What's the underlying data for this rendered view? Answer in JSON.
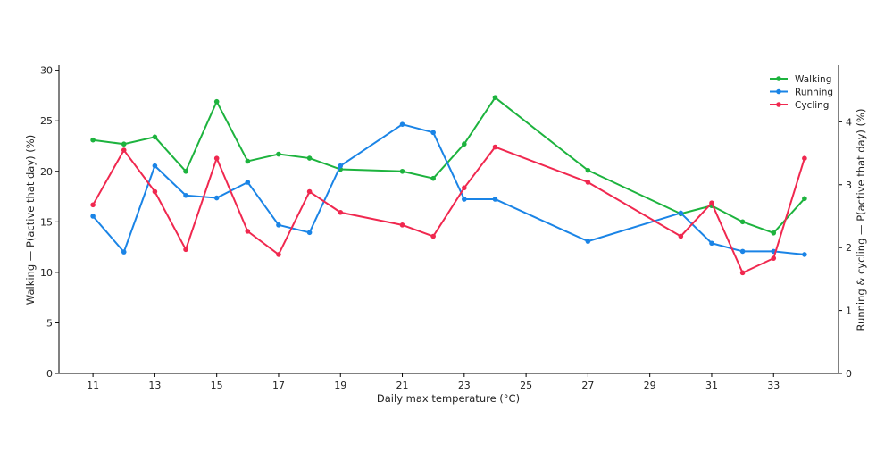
{
  "chart_data": {
    "type": "line",
    "title": "",
    "xlabel": "Daily max temperature (°C)",
    "ylabel_left": "Walking — P(active that day) (%)",
    "ylabel_right": "Running & cycling — P(active that day) (%)",
    "x_ticks": [
      11,
      13,
      15,
      17,
      19,
      21,
      23,
      25,
      27,
      29,
      31,
      33
    ],
    "xlim": [
      9.9,
      35.1
    ],
    "y_left": {
      "lim": [
        0,
        30.5
      ],
      "ticks": [
        0,
        5,
        10,
        15,
        20,
        25,
        30
      ]
    },
    "y_right": {
      "lim": [
        0,
        4.9
      ],
      "ticks": [
        0,
        1,
        2,
        3,
        4
      ]
    },
    "grid": false,
    "legend_position": "top-right",
    "series": [
      {
        "name": "Walking",
        "axis": "left",
        "color": "#1db33e",
        "x": [
          11,
          12,
          13,
          14,
          15,
          16,
          17,
          18,
          19,
          21,
          22,
          23,
          24,
          27,
          30,
          31,
          32,
          33,
          34
        ],
        "values": [
          23.1,
          22.7,
          23.4,
          20.0,
          26.9,
          21.0,
          21.7,
          21.3,
          20.2,
          20.0,
          19.3,
          22.7,
          27.3,
          20.1,
          15.8,
          16.6,
          15.0,
          13.9,
          17.3
        ]
      },
      {
        "name": "Running",
        "axis": "right",
        "color": "#1a84e6",
        "x": [
          11,
          12,
          13,
          14,
          15,
          16,
          17,
          18,
          19,
          21,
          22,
          23,
          24,
          27,
          30,
          31,
          32,
          33,
          34
        ],
        "values": [
          2.5,
          1.93,
          3.3,
          2.83,
          2.79,
          3.04,
          2.36,
          2.24,
          3.3,
          3.96,
          3.83,
          2.77,
          2.77,
          2.1,
          2.55,
          2.07,
          1.94,
          1.94,
          1.89
        ]
      },
      {
        "name": "Cycling",
        "axis": "right",
        "color": "#f0284f",
        "x": [
          11,
          12,
          13,
          14,
          15,
          16,
          17,
          18,
          19,
          21,
          22,
          23,
          24,
          27,
          30,
          31,
          32,
          33,
          34
        ],
        "values": [
          2.68,
          3.55,
          2.89,
          1.97,
          3.42,
          2.26,
          1.89,
          2.89,
          2.56,
          2.36,
          2.18,
          2.95,
          3.6,
          3.04,
          2.18,
          2.71,
          1.6,
          1.83,
          3.42
        ]
      }
    ]
  }
}
